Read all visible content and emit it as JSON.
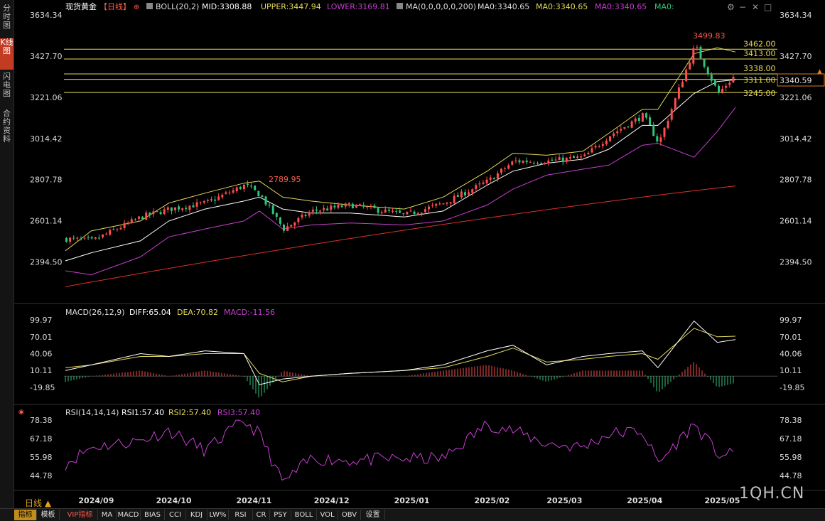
{
  "left_tabs": [
    "分时图",
    "K线图",
    "闪电图",
    "合约资料"
  ],
  "active_left_tab": 1,
  "main_legend": {
    "title": "现货黄金",
    "period_tag": "【日线】",
    "boll": "BOLL(20,2)",
    "mid": "MID:3308.88",
    "upper": "UPPER:3447.94",
    "lower": "LOWER:3169.81",
    "ma": "MA(0,0,0,0,0,200)",
    "ma0_a": "MA0:3340.65",
    "ma0_b": "MA0:3340.65",
    "ma0_c": "MA0:3340.65",
    "ma0_d": "MA0:"
  },
  "price_axis": {
    "ticks": [
      "3634.34",
      "3427.70",
      "3221.06",
      "3014.42",
      "2807.78",
      "2601.14",
      "2394.50"
    ],
    "current_price": "3340.59"
  },
  "hlines": [
    {
      "label": "3462.00",
      "value": 3462.0
    },
    {
      "label": "3413.00",
      "value": 3413.0
    },
    {
      "label": "3338.00",
      "value": 3338.0
    },
    {
      "label": "3311.00",
      "value": 3311.0
    },
    {
      "label": "3245.00",
      "value": 3245.0
    }
  ],
  "annotations": {
    "high_all": "3499.83",
    "high_prev": "2789.95"
  },
  "macd_legend": {
    "name": "MACD(26,12,9)",
    "diff": "DIFF:65.04",
    "dea": "DEA:70.82",
    "macd": "MACD:-11.56"
  },
  "macd_axis": [
    "99.97",
    "70.01",
    "40.06",
    "10.11",
    "-19.85"
  ],
  "rsi_legend": {
    "name": "RSI(14,14,14)",
    "rsi1": "RSI1:57.40",
    "rsi2": "RSI2:57.40",
    "rsi3": "RSI3:57.40"
  },
  "rsi_axis": [
    "78.38",
    "67.18",
    "55.98",
    "44.78"
  ],
  "x_axis": [
    "2024/09",
    "2024/10",
    "2024/11",
    "2024/12",
    "2025/01",
    "2025/02",
    "2025/03",
    "2025/04",
    "2025/05"
  ],
  "period_label": "日线 ▲",
  "bottom_tabs": [
    "指标",
    "模板",
    "VIP指标",
    "MA",
    "MACD",
    "BIAS",
    "CCI",
    "KDJ",
    "LW%",
    "RSI",
    "CR",
    "PSY",
    "BOLL",
    "VOL",
    "OBV",
    "设置"
  ],
  "watermark": "1QH.CN",
  "colors": {
    "up": "#ff4d4d",
    "down": "#2fc47a",
    "mid": "#ffffff",
    "upper": "#e3d95a",
    "lower": "#c63fd0",
    "ma200": "#e0322b",
    "hline": "#e3d95a",
    "diff": "#ffffff",
    "dea": "#e3d95a",
    "rsi": "#c63fd0"
  },
  "chart_data": {
    "type": "candlestick",
    "title": "现货黄金 【日线】",
    "price_range": [
      2280,
      3700
    ],
    "dates": [
      "2024-08-22",
      "2024-09-01",
      "2024-09-20",
      "2024-10-01",
      "2024-10-15",
      "2024-10-30",
      "2024-11-05",
      "2024-11-14",
      "2024-11-25",
      "2024-12-10",
      "2024-12-31",
      "2025-01-15",
      "2025-02-01",
      "2025-02-11",
      "2025-02-24",
      "2025-03-10",
      "2025-03-20",
      "2025-04-02",
      "2025-04-08",
      "2025-04-22",
      "2025-05-01",
      "2025-05-08"
    ],
    "close_path": [
      2510,
      2500,
      2620,
      2660,
      2690,
      2780,
      2730,
      2560,
      2650,
      2680,
      2630,
      2690,
      2800,
      2900,
      2900,
      2920,
      3030,
      3130,
      2990,
      3480,
      3240,
      3340
    ],
    "boll_mid_path": [
      2400,
      2440,
      2500,
      2600,
      2660,
      2700,
      2720,
      2660,
      2640,
      2640,
      2620,
      2650,
      2780,
      2850,
      2890,
      2910,
      2960,
      3080,
      3080,
      3240,
      3300,
      3309
    ],
    "boll_upper_path": [
      2450,
      2550,
      2600,
      2690,
      2740,
      2790,
      2800,
      2720,
      2700,
      2680,
      2660,
      2720,
      2850,
      2940,
      2930,
      2950,
      3040,
      3160,
      3160,
      3440,
      3470,
      3448
    ],
    "boll_lower_path": [
      2350,
      2330,
      2420,
      2520,
      2560,
      2600,
      2650,
      2560,
      2580,
      2590,
      2580,
      2600,
      2680,
      2760,
      2830,
      2860,
      2880,
      2980,
      2990,
      2920,
      3050,
      3170
    ],
    "ma200": [
      2270,
      2776
    ],
    "series": [
      {
        "name": "DIFF",
        "values": [
          10,
          20,
          40,
          35,
          45,
          40,
          -15,
          -5,
          0,
          5,
          10,
          20,
          45,
          55,
          20,
          35,
          40,
          45,
          15,
          98,
          60,
          65
        ]
      },
      {
        "name": "DEA",
        "values": [
          15,
          20,
          35,
          35,
          40,
          40,
          5,
          -10,
          0,
          5,
          10,
          15,
          35,
          50,
          25,
          30,
          35,
          40,
          30,
          85,
          70,
          71
        ]
      },
      {
        "name": "RSI1",
        "values": [
          52,
          62,
          66,
          72,
          60,
          78,
          70,
          40,
          55,
          54,
          55,
          55,
          76,
          72,
          64,
          62,
          70,
          72,
          52,
          76,
          58,
          57
        ]
      }
    ]
  }
}
